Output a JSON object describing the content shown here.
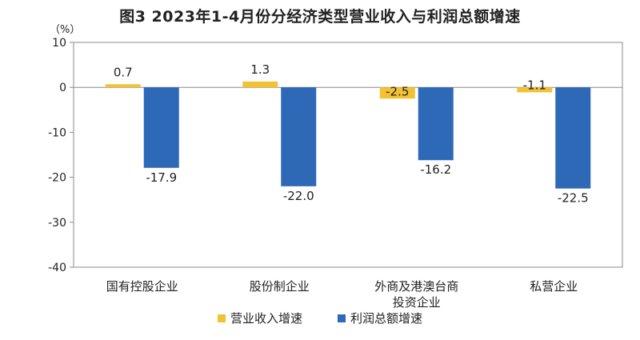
{
  "title": "图3  2023年1-4月份分经济类型营业收入与利润总额增速",
  "y_unit": "（%）",
  "chart_data": {
    "type": "bar",
    "categories": [
      "国有控股企业",
      "股份制企业",
      "外商及港澳台商投资企业",
      "私营企业"
    ],
    "category_lines": [
      [
        "国有控股企业"
      ],
      [
        "股份制企业"
      ],
      [
        "外商及港澳台商",
        "投资企业"
      ],
      [
        "私营企业"
      ]
    ],
    "series": [
      {
        "name": "营业收入增速",
        "values": [
          0.7,
          1.3,
          -2.5,
          -1.1
        ],
        "labels": [
          "0.7",
          "1.3",
          "-2.5",
          "-1.1"
        ],
        "color": "#F2C232"
      },
      {
        "name": "利润总额增速",
        "values": [
          -17.9,
          -22.0,
          -16.2,
          -22.5
        ],
        "labels": [
          "-17.9",
          "-22.0",
          "-16.2",
          "-22.5"
        ],
        "color": "#2E69B8"
      }
    ],
    "ylim": [
      -40,
      10
    ],
    "yticks": [
      10,
      0,
      -10,
      -20,
      -30,
      -40
    ],
    "ytick_labels": [
      "10",
      "0",
      "-10",
      "-20",
      "-30",
      "-40"
    ],
    "grid": false,
    "legend_position": "bottom"
  }
}
